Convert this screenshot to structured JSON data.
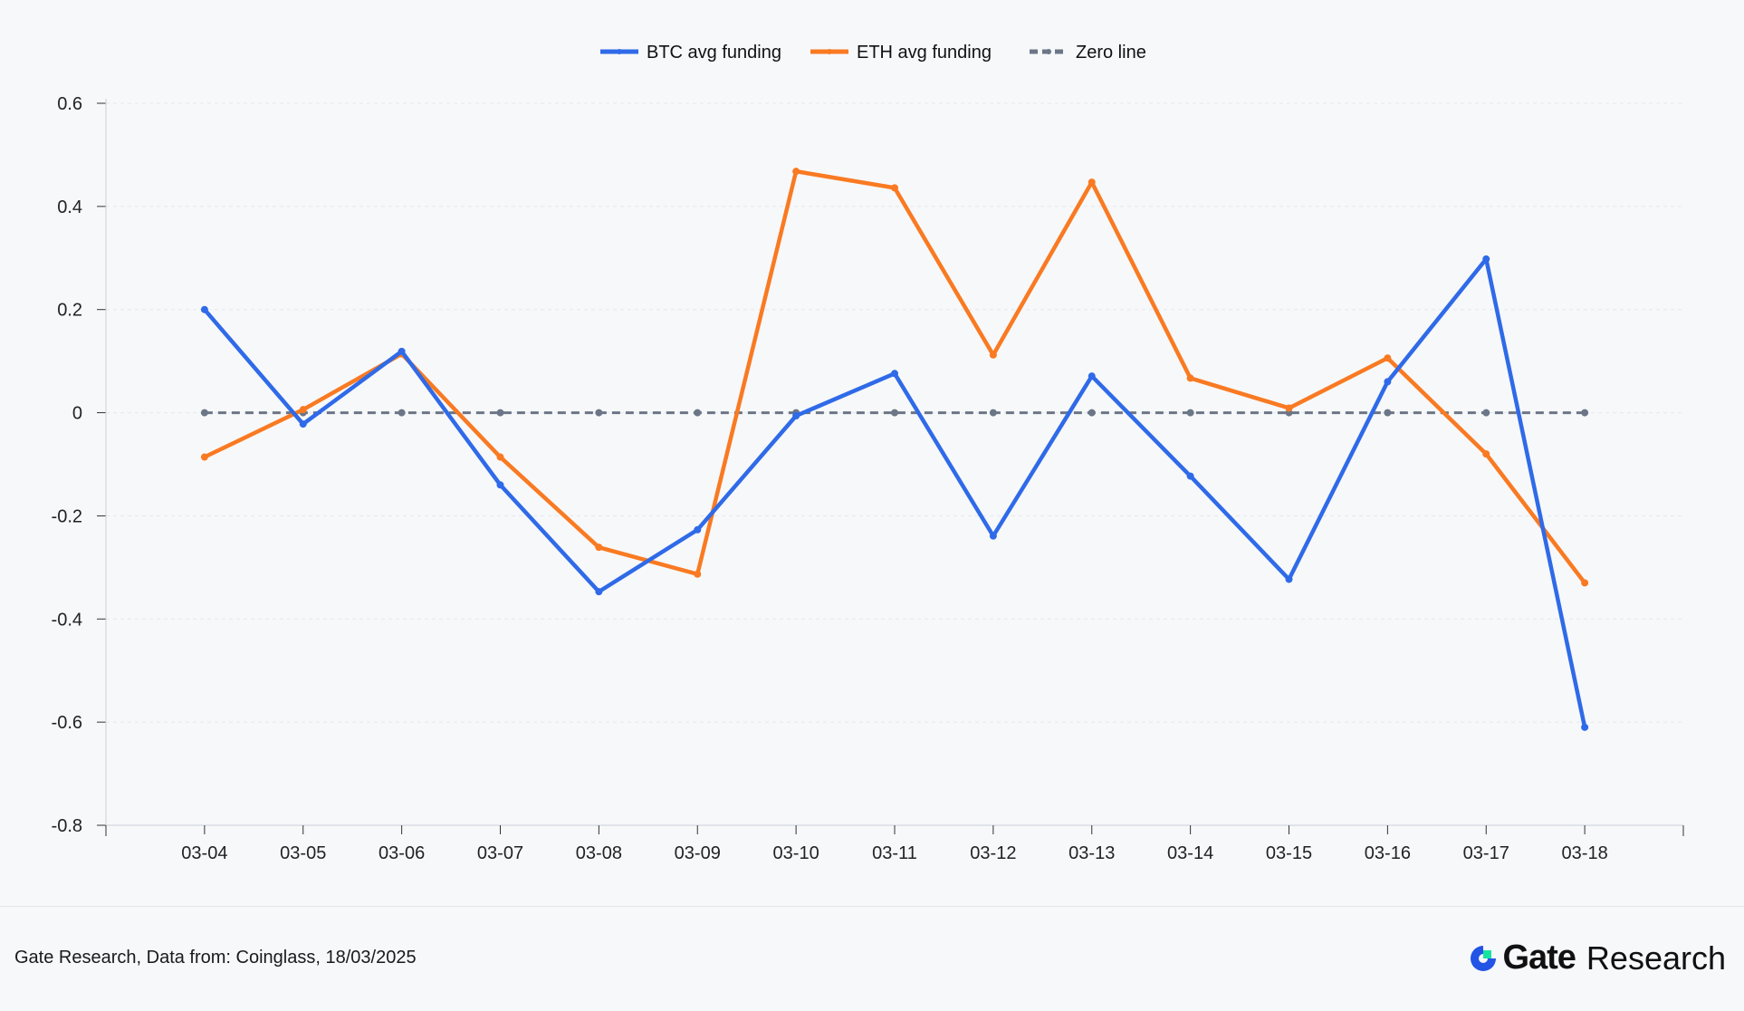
{
  "chart_data": {
    "type": "line",
    "title": "",
    "xlabel": "",
    "ylabel": "",
    "categories": [
      "03-04",
      "03-05",
      "03-06",
      "03-07",
      "03-08",
      "03-09",
      "03-10",
      "03-11",
      "03-12",
      "03-13",
      "03-14",
      "03-15",
      "03-16",
      "03-17",
      "03-18"
    ],
    "ylim": [
      -0.8,
      0.6
    ],
    "yticks": [
      0.6,
      0.4,
      0.2,
      0,
      -0.2,
      -0.4,
      -0.6,
      -0.8
    ],
    "ytick_labels": [
      "0.6",
      "0.4",
      "0.2",
      "0",
      "-0.2",
      "-0.4",
      "-0.6",
      "-0.8"
    ],
    "grid": true,
    "legend_position": "top-center",
    "series": [
      {
        "name": "BTC avg funding",
        "color": "#2f6ae8",
        "style": "solid",
        "values": [
          0.2,
          -0.022,
          0.119,
          -0.14,
          -0.347,
          -0.227,
          -0.006,
          0.076,
          -0.239,
          0.071,
          -0.123,
          -0.323,
          0.06,
          0.298,
          -0.61
        ]
      },
      {
        "name": "ETH avg funding",
        "color": "#f97a22",
        "style": "solid",
        "values": [
          -0.086,
          0.006,
          0.114,
          -0.086,
          -0.261,
          -0.313,
          0.468,
          0.436,
          0.112,
          0.447,
          0.067,
          0.009,
          0.106,
          -0.08,
          -0.33
        ]
      },
      {
        "name": "Zero line",
        "color": "#6b7686",
        "style": "dashed",
        "values": [
          0,
          0,
          0,
          0,
          0,
          0,
          0,
          0,
          0,
          0,
          0,
          0,
          0,
          0,
          0
        ]
      }
    ]
  },
  "footer": {
    "source": "Gate Research, Data from: Coinglass, 18/03/2025",
    "logo_brand": "Gate",
    "logo_suffix": "Research"
  }
}
